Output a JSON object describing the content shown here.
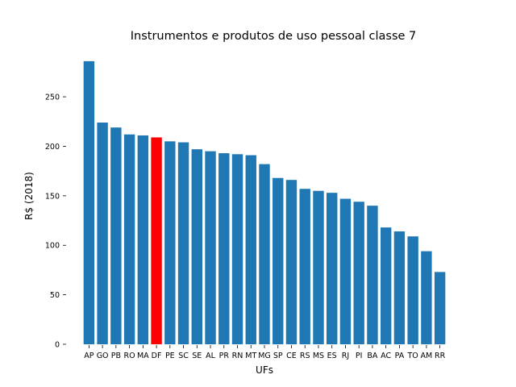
{
  "chart_data": {
    "type": "bar",
    "title": "Instrumentos e produtos de uso pessoal classe 7",
    "xlabel": "UFs",
    "ylabel": "R$ (2018)",
    "ylim": [
      0,
      290
    ],
    "yticks": [
      0,
      50,
      100,
      150,
      200,
      250
    ],
    "grid": false,
    "default_color": "#1f77b4",
    "highlight_color": "#ff0000",
    "highlight_category": "DF",
    "categories": [
      "AP",
      "GO",
      "PB",
      "RO",
      "MA",
      "DF",
      "PE",
      "SC",
      "SE",
      "AL",
      "PR",
      "RN",
      "MT",
      "MG",
      "SP",
      "CE",
      "RS",
      "MS",
      "ES",
      "RJ",
      "PI",
      "BA",
      "AC",
      "PA",
      "TO",
      "AM",
      "RR"
    ],
    "values": [
      286,
      224,
      219,
      212,
      211,
      209,
      205,
      204,
      197,
      195,
      193,
      192,
      191,
      182,
      168,
      166,
      157,
      155,
      153,
      147,
      144,
      140,
      118,
      114,
      109,
      94,
      73
    ]
  }
}
